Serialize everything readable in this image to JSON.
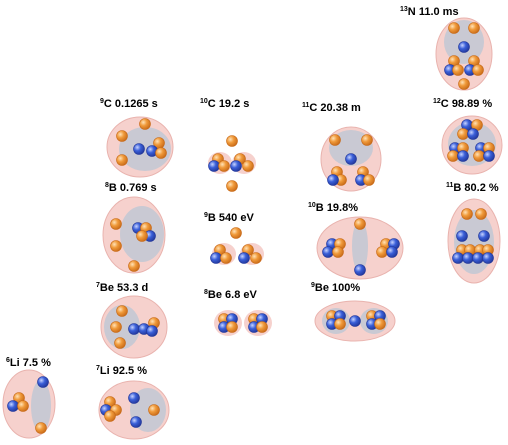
{
  "colors": {
    "cloud": "#f6d1cd",
    "cloud_edge": "#e9b3ae",
    "cluster": "#c9c9d3",
    "proton": "#f09a3a",
    "proton_shade": "#c86a18",
    "neutron": "#3a5fd8",
    "neutron_shade": "#22379a"
  },
  "nuclides": [
    {
      "id": "n13",
      "mass": "13",
      "symbol": "N",
      "value": "11.0 ms"
    },
    {
      "id": "c9",
      "mass": "9",
      "symbol": "C",
      "value": "0.1265 s"
    },
    {
      "id": "c10",
      "mass": "10",
      "symbol": "C",
      "value": "19.2 s"
    },
    {
      "id": "c11",
      "mass": "11",
      "symbol": "C",
      "value": "20.38 m"
    },
    {
      "id": "c12",
      "mass": "12",
      "symbol": "C",
      "value": "98.89 %"
    },
    {
      "id": "b8",
      "mass": "8",
      "symbol": "B",
      "value": "0.769 s"
    },
    {
      "id": "b9",
      "mass": "9",
      "symbol": "B",
      "value": "540 eV"
    },
    {
      "id": "b10",
      "mass": "10",
      "symbol": "B",
      "value": "19.8%"
    },
    {
      "id": "b11",
      "mass": "11",
      "symbol": "B",
      "value": "80.2 %"
    },
    {
      "id": "be7",
      "mass": "7",
      "symbol": "Be",
      "value": "53.3 d"
    },
    {
      "id": "be8",
      "mass": "8",
      "symbol": "Be",
      "value": "6.8 eV"
    },
    {
      "id": "be9",
      "mass": "9",
      "symbol": "Be",
      "value": "100%"
    },
    {
      "id": "li6",
      "mass": "6",
      "symbol": "Li",
      "value": "7.5 %"
    },
    {
      "id": "li7",
      "mass": "7",
      "symbol": "Li",
      "value": "92.5 %"
    }
  ]
}
